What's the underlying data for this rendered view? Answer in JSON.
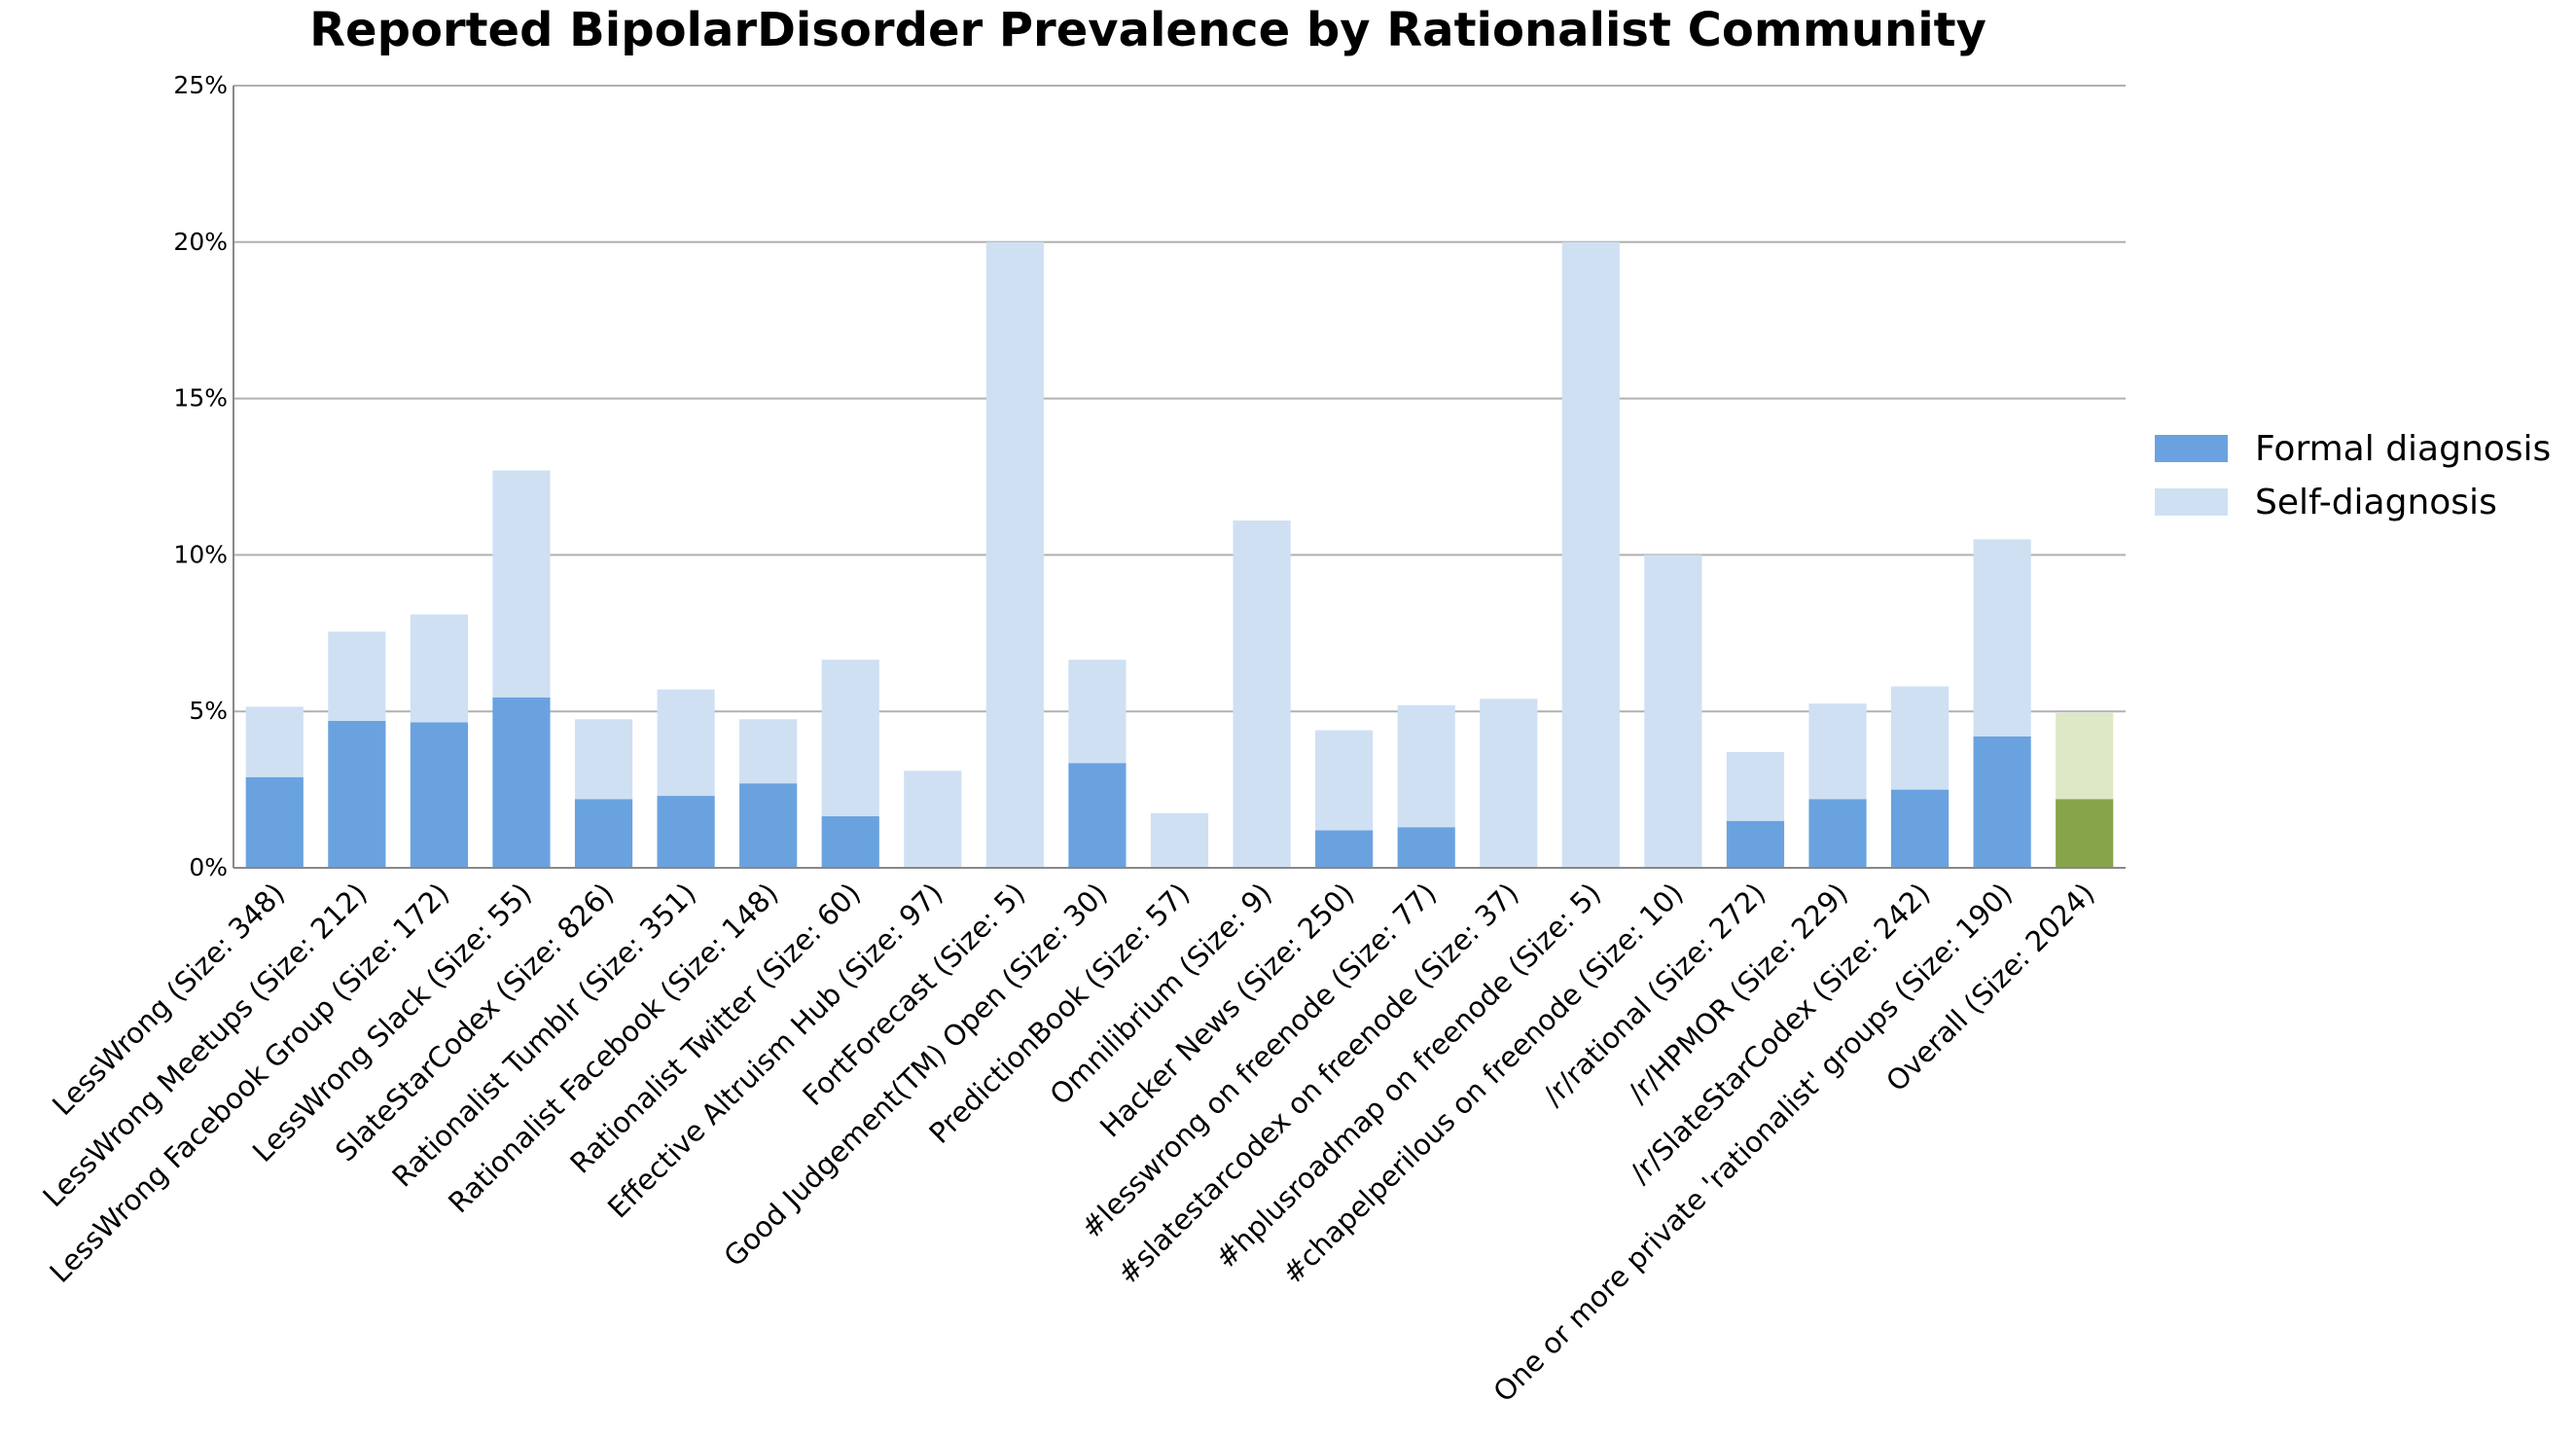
{
  "chart_data": {
    "type": "bar",
    "stacked": true,
    "title": "Reported BipolarDisorder Prevalence by Rationalist Community",
    "xlabel": "",
    "ylabel": "",
    "ylim": [
      0,
      25
    ],
    "yticks": [
      0,
      5,
      10,
      15,
      20,
      25
    ],
    "ytick_labels": [
      "0%",
      "5%",
      "10%",
      "15%",
      "20%",
      "25%"
    ],
    "grid": "horizontal",
    "legend_position": "right",
    "categories": [
      "LessWrong (Size: 348)",
      "LessWrong Meetups (Size: 212)",
      "LessWrong Facebook Group (Size: 172)",
      "LessWrong Slack (Size: 55)",
      "SlateStarCodex (Size: 826)",
      "Rationalist Tumblr (Size: 351)",
      "Rationalist Facebook (Size: 148)",
      "Rationalist Twitter (Size: 60)",
      "Effective Altruism Hub (Size: 97)",
      "FortForecast (Size: 5)",
      "Good Judgement(TM) Open (Size: 30)",
      "PredictionBook (Size: 57)",
      "Omnilibrium (Size: 9)",
      "Hacker News (Size: 250)",
      "#lesswrong on freenode (Size: 77)",
      "#slatestarcodex on freenode (Size: 37)",
      "#hplusroadmap on freenode (Size: 5)",
      "#chapelperilous on freenode (Size: 10)",
      "/r/rational (Size: 272)",
      "/r/HPMOR (Size: 229)",
      "/r/SlateStarCodex (Size: 242)",
      "One or more private 'rationalist' groups (Size: 190)",
      "Overall (Size: 2024)"
    ],
    "series": [
      {
        "name": "Formal diagnosis",
        "color": "#6aa2e0",
        "highlight_color": "#88a44a",
        "values": [
          2.9,
          4.7,
          4.65,
          5.45,
          2.2,
          2.3,
          2.7,
          1.65,
          0,
          0,
          3.35,
          0,
          0,
          1.2,
          1.3,
          0,
          0,
          0,
          1.5,
          2.2,
          2.5,
          4.2,
          2.2
        ]
      },
      {
        "name": "Self-diagnosis",
        "color": "#cfe0f3",
        "highlight_color": "#dce8c6",
        "values": [
          2.25,
          2.85,
          3.45,
          7.25,
          2.55,
          3.4,
          2.05,
          5.0,
          3.1,
          20.0,
          3.3,
          1.75,
          11.1,
          3.2,
          3.9,
          5.4,
          20.0,
          10.0,
          2.2,
          3.05,
          3.3,
          6.3,
          2.75
        ]
      }
    ],
    "highlighted_category": "Overall (Size: 2024)"
  }
}
